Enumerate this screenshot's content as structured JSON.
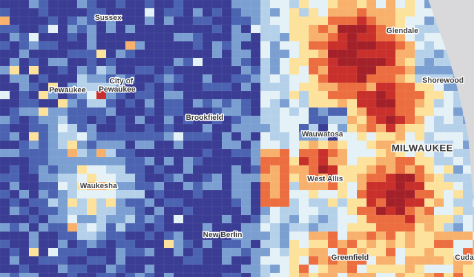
{
  "labels": {
    "sussex": "Sussex",
    "city_of": "City of",
    "city_pewaukee": "Pewaukee",
    "pewaukee": "Pewaukee",
    "brookfield": "Brookfield",
    "glendale": "Glendale",
    "shorewood": "Shorewood",
    "wauwatosa": "Wauwatosa",
    "milwaukee": "MILWAUKEE",
    "west_allis": "West Allis",
    "waukesha": "Waukesha",
    "new_berlin": "New Berlin",
    "greenfield": "Greenfield",
    "cudahy": "Cuda"
  }
}
